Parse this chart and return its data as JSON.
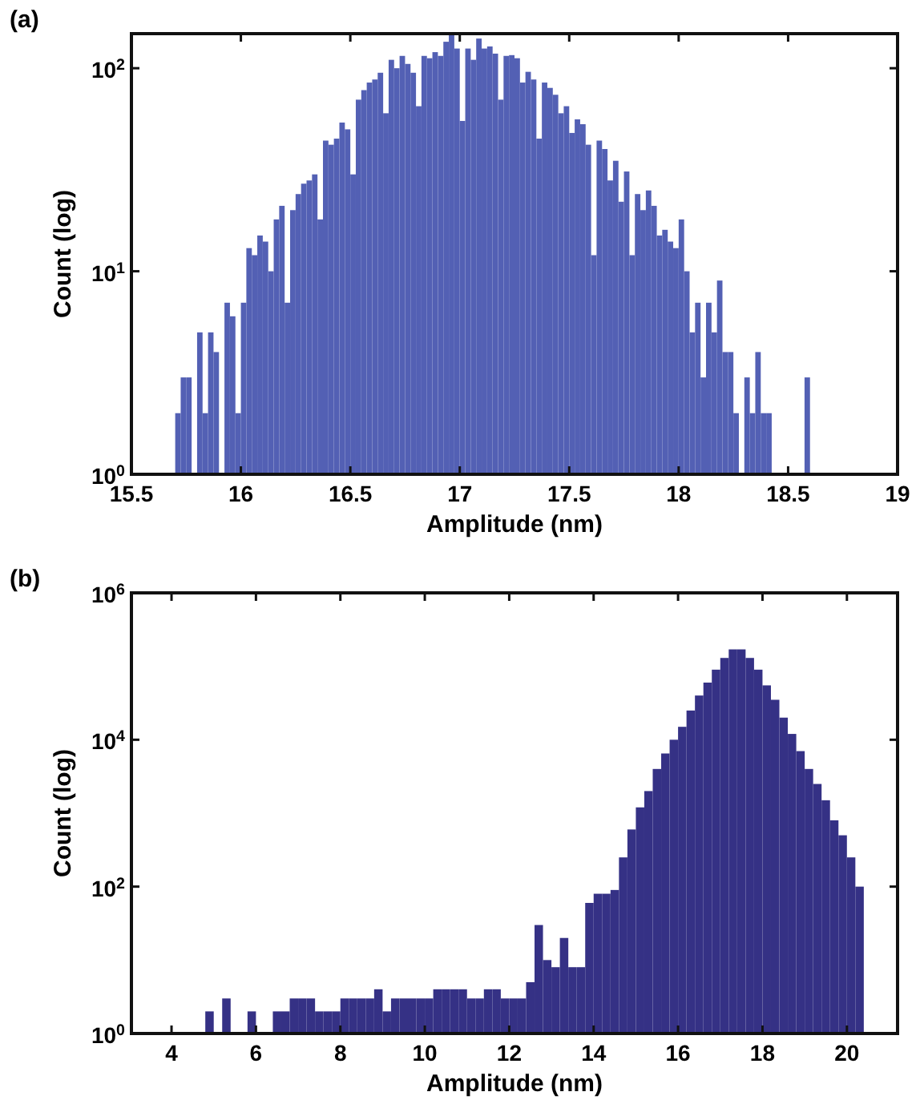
{
  "chart_data": [
    {
      "type": "histogram",
      "title": "(a)",
      "xlabel": "Amplitude (nm)",
      "ylabel": "Count (log)",
      "log": "y",
      "color": "#5360b4",
      "bins": [
        15.7,
        15.725,
        15.75,
        15.775,
        15.8,
        15.825,
        15.85,
        15.875,
        15.9,
        15.925,
        15.95,
        15.975,
        16,
        16.025,
        16.05,
        16.075,
        16.1,
        16.125,
        16.15,
        16.175,
        16.2,
        16.225,
        16.25,
        16.275,
        16.3,
        16.325,
        16.35,
        16.375,
        16.4,
        16.425,
        16.45,
        16.475,
        16.5,
        16.525,
        16.55,
        16.575,
        16.6,
        16.625,
        16.65,
        16.675,
        16.7,
        16.725,
        16.75,
        16.775,
        16.8,
        16.825,
        16.85,
        16.875,
        16.9,
        16.925,
        16.95,
        16.975,
        17,
        17.025,
        17.05,
        17.075,
        17.1,
        17.125,
        17.15,
        17.175,
        17.2,
        17.225,
        17.25,
        17.275,
        17.3,
        17.325,
        17.35,
        17.375,
        17.4,
        17.425,
        17.45,
        17.475,
        17.5,
        17.525,
        17.55,
        17.575,
        17.6,
        17.625,
        17.65,
        17.675,
        17.7,
        17.725,
        17.75,
        17.775,
        17.8,
        17.825,
        17.85,
        17.875,
        17.9,
        17.925,
        17.95,
        17.975,
        18,
        18.025,
        18.05,
        18.075,
        18.1,
        18.125,
        18.15,
        18.175,
        18.2,
        18.225,
        18.25,
        18.275,
        18.3,
        18.325,
        18.35,
        18.375,
        18.4,
        18.425,
        18.45,
        18.475,
        18.5,
        18.525,
        18.55,
        18.575,
        18.6
      ],
      "values": [
        2,
        3,
        3,
        1,
        5,
        2,
        5,
        4,
        1,
        7,
        6,
        2,
        7,
        13,
        12,
        15,
        14,
        10,
        18,
        21,
        7,
        20,
        24,
        27,
        28,
        30,
        18,
        44,
        42,
        45,
        54,
        50,
        30,
        70,
        78,
        85,
        88,
        95,
        60,
        110,
        100,
        115,
        105,
        95,
        65,
        115,
        112,
        120,
        115,
        135,
        148,
        125,
        55,
        125,
        110,
        140,
        125,
        128,
        118,
        70,
        115,
        116,
        112,
        85,
        96,
        88,
        45,
        85,
        80,
        74,
        60,
        65,
        48,
        56,
        53,
        42,
        12,
        44,
        40,
        28,
        35,
        22,
        31,
        12,
        24,
        20,
        25,
        21,
        15,
        16,
        14,
        13,
        18,
        10,
        5,
        7,
        3,
        7,
        5,
        9,
        4,
        4,
        2,
        1,
        3,
        2,
        4,
        2,
        2,
        1,
        1,
        1,
        1,
        1,
        1,
        3
      ],
      "xlim": [
        15.5,
        19
      ],
      "xticks": [
        15.5,
        16,
        16.5,
        17,
        17.5,
        18,
        18.5,
        19
      ],
      "ylim": [
        1,
        148
      ],
      "yticks": [
        {
          "value": 1,
          "label": "10$^{0}$"
        },
        {
          "value": 10,
          "label": "10$^{1}$"
        },
        {
          "value": 100,
          "label": "10$^{2}$"
        }
      ]
    },
    {
      "type": "histogram",
      "title": "(b)",
      "xlabel": "Amplitude (nm)",
      "ylabel": "Count (log)",
      "log": "y",
      "color": "#353185",
      "bins": [
        4.8,
        5,
        5.2,
        5.4,
        5.6,
        5.8,
        6,
        6.2,
        6.4,
        6.6,
        6.8,
        7,
        7.2,
        7.4,
        7.6,
        7.8,
        8,
        8.2,
        8.4,
        8.6,
        8.8,
        9,
        9.2,
        9.4,
        9.6,
        9.8,
        10,
        10.2,
        10.4,
        10.6,
        10.8,
        11,
        11.2,
        11.4,
        11.6,
        11.8,
        12,
        12.2,
        12.4,
        12.6,
        12.8,
        13,
        13.2,
        13.4,
        13.6,
        13.8,
        14,
        14.2,
        14.4,
        14.6,
        14.8,
        15,
        15.2,
        15.4,
        15.6,
        15.8,
        16,
        16.2,
        16.4,
        16.6,
        16.8,
        17,
        17.2,
        17.4,
        17.6,
        17.8,
        18,
        18.2,
        18.4,
        18.6,
        18.8,
        19,
        19.2,
        19.4,
        19.6,
        19.8,
        20,
        20.2,
        20.4
      ],
      "values": [
        2,
        1,
        3,
        1,
        1,
        2,
        1,
        1,
        2,
        2,
        3,
        3,
        3,
        2,
        2,
        2,
        3,
        3,
        3,
        3,
        4,
        2,
        3,
        3,
        3,
        3,
        3,
        4,
        4,
        4,
        4,
        3,
        3,
        4,
        4,
        3,
        3,
        3,
        5,
        30,
        10,
        8,
        20,
        8,
        8,
        60,
        80,
        80,
        90,
        250,
        600,
        1200,
        2000,
        4000,
        6500,
        10000,
        15000,
        25000,
        40000,
        60000,
        90000,
        130000,
        170000,
        170000,
        130000,
        90000,
        55000,
        35000,
        20000,
        12000,
        7000,
        4000,
        2500,
        1500,
        800,
        500,
        250,
        100
      ],
      "xlim": [
        3.05,
        21.2
      ],
      "xticks": [
        4,
        6,
        8,
        10,
        12,
        14,
        16,
        18,
        20
      ],
      "ylim": [
        1,
        1000000
      ],
      "yticks": [
        {
          "value": 1,
          "label": "10$^{0}$"
        },
        {
          "value": 100,
          "label": "10$^{2}$"
        },
        {
          "value": 10000,
          "label": "10$^{4}$"
        },
        {
          "value": 1000000,
          "label": "10$^{6}$"
        }
      ]
    }
  ]
}
